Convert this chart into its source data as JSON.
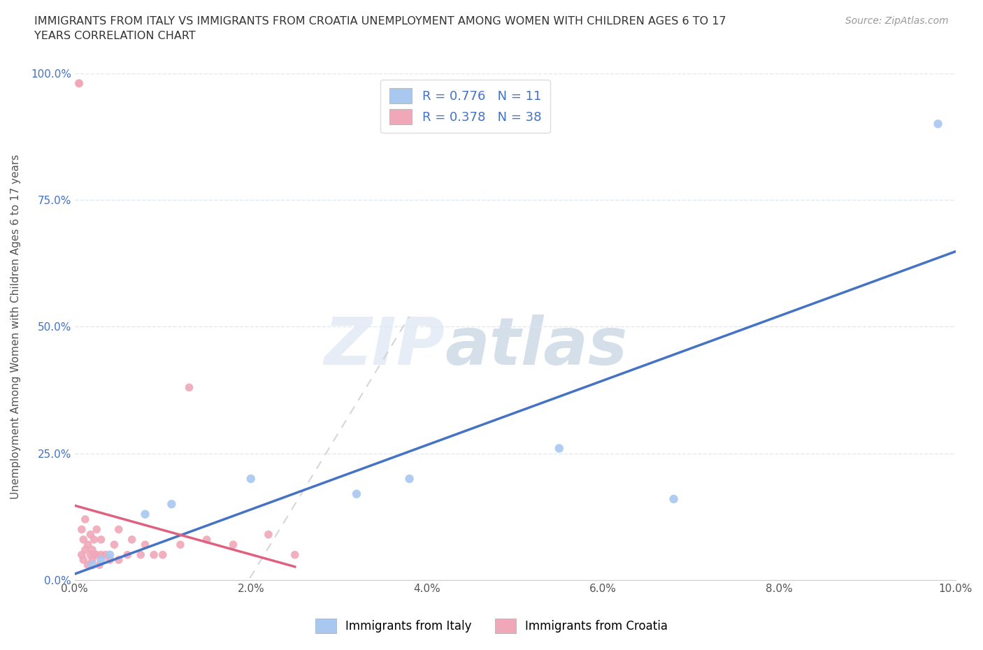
{
  "title": "IMMIGRANTS FROM ITALY VS IMMIGRANTS FROM CROATIA UNEMPLOYMENT AMONG WOMEN WITH CHILDREN AGES 6 TO 17\nYEARS CORRELATION CHART",
  "source": "Source: ZipAtlas.com",
  "ylabel": "Unemployment Among Women with Children Ages 6 to 17 years",
  "xlim": [
    0.0,
    10.0
  ],
  "ylim": [
    0.0,
    100.0
  ],
  "xticks": [
    0.0,
    2.0,
    4.0,
    6.0,
    8.0,
    10.0
  ],
  "yticks": [
    0.0,
    25.0,
    50.0,
    75.0,
    100.0
  ],
  "xtick_labels": [
    "0.0%",
    "2.0%",
    "4.0%",
    "6.0%",
    "8.0%",
    "10.0%"
  ],
  "ytick_labels": [
    "0.0%",
    "25.0%",
    "50.0%",
    "75.0%",
    "100.0%"
  ],
  "italy_R": 0.776,
  "italy_N": 11,
  "croatia_R": 0.378,
  "croatia_N": 38,
  "italy_color": "#a8c8f0",
  "croatia_color": "#f0a8b8",
  "italy_line_color": "#4472c4",
  "croatia_line_color": "#e06080",
  "legend_R_color": "#4472c4",
  "watermark_zip": "ZIP",
  "watermark_atlas": "atlas",
  "background_color": "#ffffff",
  "grid_color": "#e0e8f0",
  "italy_x": [
    0.2,
    0.3,
    0.4,
    0.8,
    1.1,
    2.0,
    3.2,
    3.8,
    5.5,
    6.8,
    9.8
  ],
  "italy_y": [
    3.0,
    4.0,
    5.0,
    13.0,
    15.0,
    20.0,
    17.0,
    20.0,
    26.0,
    16.0,
    90.0
  ],
  "croatia_x": [
    0.05,
    0.05,
    0.08,
    0.08,
    0.1,
    0.1,
    0.12,
    0.12,
    0.15,
    0.15,
    0.18,
    0.18,
    0.2,
    0.2,
    0.22,
    0.22,
    0.25,
    0.25,
    0.28,
    0.3,
    0.3,
    0.35,
    0.4,
    0.45,
    0.5,
    0.5,
    0.6,
    0.65,
    0.75,
    0.8,
    0.9,
    1.0,
    1.2,
    1.3,
    1.5,
    1.8,
    2.2,
    2.5
  ],
  "croatia_y": [
    98.0,
    98.0,
    5.0,
    10.0,
    4.0,
    8.0,
    6.0,
    12.0,
    3.0,
    7.0,
    5.0,
    9.0,
    4.0,
    6.0,
    5.0,
    8.0,
    5.0,
    10.0,
    3.0,
    5.0,
    8.0,
    5.0,
    4.0,
    7.0,
    4.0,
    10.0,
    5.0,
    8.0,
    5.0,
    7.0,
    5.0,
    5.0,
    7.0,
    38.0,
    8.0,
    7.0,
    9.0,
    5.0
  ],
  "italy_marker_size": 80,
  "croatia_marker_size": 70,
  "legend_entries": [
    "Immigrants from Italy",
    "Immigrants from Croatia"
  ]
}
